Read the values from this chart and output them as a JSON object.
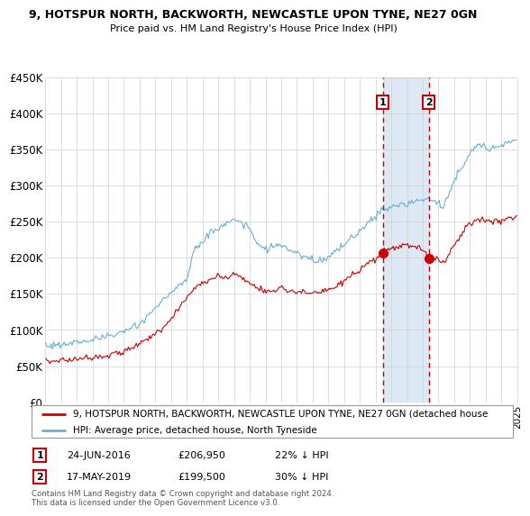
{
  "title1": "9, HOTSPUR NORTH, BACKWORTH, NEWCASTLE UPON TYNE, NE27 0GN",
  "title2": "Price paid vs. HM Land Registry's House Price Index (HPI)",
  "ylim": [
    0,
    450000
  ],
  "yticks": [
    0,
    50000,
    100000,
    150000,
    200000,
    250000,
    300000,
    350000,
    400000,
    450000
  ],
  "ytick_labels": [
    "£0",
    "£50K",
    "£100K",
    "£150K",
    "£200K",
    "£250K",
    "£300K",
    "£350K",
    "£400K",
    "£450K"
  ],
  "sale1_price": 206950,
  "sale1_date_str": "24-JUN-2016",
  "sale1_pct": "22% ↓ HPI",
  "sale2_price": 199500,
  "sale2_date_str": "17-MAY-2019",
  "sale2_pct": "30% ↓ HPI",
  "hpi_color": "#6baed6",
  "price_color": "#cc0000",
  "sale_marker_color": "#cc0000",
  "shaded_color": "#c6dbef",
  "legend_label1": "9, HOTSPUR NORTH, BACKWORTH, NEWCASTLE UPON TYNE, NE27 0GN (detached house",
  "legend_label2": "HPI: Average price, detached house, North Tyneside",
  "footer": "Contains HM Land Registry data © Crown copyright and database right 2024.\nThis data is licensed under the Open Government Licence v3.0.",
  "hpi_keypoints": [
    [
      1995.0,
      78000
    ],
    [
      1996.0,
      80000
    ],
    [
      1997.0,
      83000
    ],
    [
      1998.0,
      87000
    ],
    [
      1999.0,
      91000
    ],
    [
      2000.0,
      97000
    ],
    [
      2001.0,
      108000
    ],
    [
      2002.0,
      130000
    ],
    [
      2003.0,
      152000
    ],
    [
      2004.0,
      170000
    ],
    [
      2004.5,
      215000
    ],
    [
      2005.0,
      220000
    ],
    [
      2005.5,
      235000
    ],
    [
      2006.0,
      240000
    ],
    [
      2006.5,
      248000
    ],
    [
      2007.0,
      252000
    ],
    [
      2007.5,
      248000
    ],
    [
      2008.0,
      240000
    ],
    [
      2008.5,
      220000
    ],
    [
      2009.0,
      210000
    ],
    [
      2009.5,
      215000
    ],
    [
      2010.0,
      218000
    ],
    [
      2010.5,
      210000
    ],
    [
      2011.0,
      205000
    ],
    [
      2011.5,
      200000
    ],
    [
      2012.0,
      198000
    ],
    [
      2012.5,
      196000
    ],
    [
      2013.0,
      200000
    ],
    [
      2013.5,
      208000
    ],
    [
      2014.0,
      218000
    ],
    [
      2014.5,
      228000
    ],
    [
      2015.0,
      238000
    ],
    [
      2015.5,
      248000
    ],
    [
      2016.0,
      258000
    ],
    [
      2016.4,
      265000
    ],
    [
      2017.0,
      270000
    ],
    [
      2017.5,
      272000
    ],
    [
      2018.0,
      274000
    ],
    [
      2018.5,
      278000
    ],
    [
      2019.0,
      280000
    ],
    [
      2019.4,
      283000
    ],
    [
      2019.5,
      280000
    ],
    [
      2020.0,
      275000
    ],
    [
      2020.3,
      270000
    ],
    [
      2020.6,
      285000
    ],
    [
      2021.0,
      305000
    ],
    [
      2021.5,
      325000
    ],
    [
      2022.0,
      345000
    ],
    [
      2022.5,
      355000
    ],
    [
      2023.0,
      355000
    ],
    [
      2023.5,
      352000
    ],
    [
      2024.0,
      355000
    ],
    [
      2024.5,
      360000
    ],
    [
      2025.0,
      365000
    ]
  ],
  "price_keypoints": [
    [
      1995.0,
      57000
    ],
    [
      1996.0,
      58000
    ],
    [
      1997.0,
      60000
    ],
    [
      1998.0,
      63000
    ],
    [
      1999.0,
      65000
    ],
    [
      2000.0,
      70000
    ],
    [
      2001.0,
      80000
    ],
    [
      2002.0,
      95000
    ],
    [
      2003.0,
      115000
    ],
    [
      2003.5,
      130000
    ],
    [
      2004.0,
      145000
    ],
    [
      2004.5,
      158000
    ],
    [
      2005.0,
      165000
    ],
    [
      2005.5,
      170000
    ],
    [
      2006.0,
      175000
    ],
    [
      2006.3,
      172000
    ],
    [
      2006.8,
      175000
    ],
    [
      2007.0,
      178000
    ],
    [
      2007.5,
      172000
    ],
    [
      2008.0,
      165000
    ],
    [
      2008.5,
      158000
    ],
    [
      2009.0,
      153000
    ],
    [
      2009.5,
      155000
    ],
    [
      2010.0,
      158000
    ],
    [
      2010.5,
      155000
    ],
    [
      2011.0,
      153000
    ],
    [
      2011.5,
      152000
    ],
    [
      2012.0,
      150000
    ],
    [
      2012.5,
      152000
    ],
    [
      2013.0,
      155000
    ],
    [
      2013.5,
      160000
    ],
    [
      2014.0,
      168000
    ],
    [
      2014.5,
      175000
    ],
    [
      2015.0,
      182000
    ],
    [
      2015.5,
      190000
    ],
    [
      2016.0,
      198000
    ],
    [
      2016.4,
      206950
    ],
    [
      2017.0,
      212000
    ],
    [
      2017.5,
      215000
    ],
    [
      2018.0,
      218000
    ],
    [
      2018.5,
      215000
    ],
    [
      2019.0,
      210000
    ],
    [
      2019.35,
      199500
    ],
    [
      2019.5,
      200000
    ],
    [
      2020.0,
      198000
    ],
    [
      2020.3,
      193000
    ],
    [
      2020.6,
      202000
    ],
    [
      2021.0,
      218000
    ],
    [
      2021.5,
      235000
    ],
    [
      2022.0,
      248000
    ],
    [
      2022.5,
      252000
    ],
    [
      2023.0,
      253000
    ],
    [
      2023.5,
      250000
    ],
    [
      2024.0,
      252000
    ],
    [
      2024.5,
      255000
    ],
    [
      2025.0,
      258000
    ]
  ]
}
